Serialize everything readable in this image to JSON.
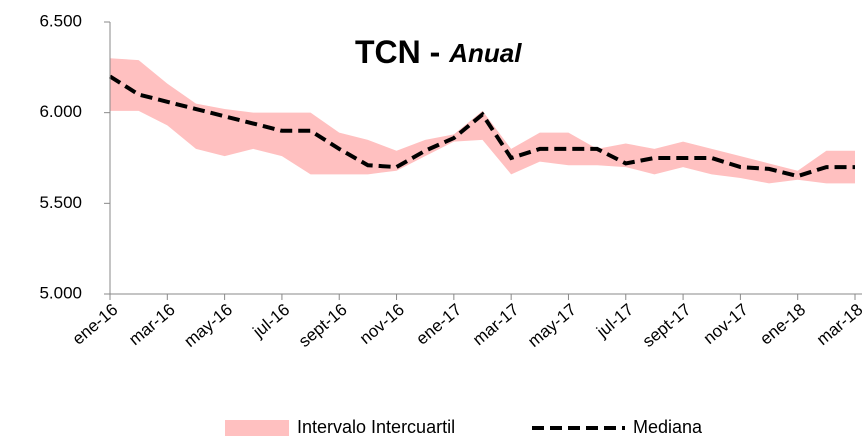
{
  "chart_data": {
    "type": "line",
    "title": "TCN -",
    "subtitle": "Anual",
    "categories": [
      "ene-16",
      null,
      "mar-16",
      null,
      "may-16",
      null,
      "jul-16",
      null,
      "sept-16",
      null,
      "nov-16",
      null,
      "ene-17",
      null,
      "mar-17",
      null,
      "may-17",
      null,
      "jul-17",
      null,
      "sept-17",
      null,
      "nov-17",
      null,
      "ene-18",
      null,
      "mar-18"
    ],
    "series": [
      {
        "name": "Intervalo Intercuartil",
        "color": "#ffc0c0",
        "upper": [
          6300,
          6290,
          6160,
          6050,
          6020,
          6000,
          6000,
          6000,
          5890,
          5850,
          5790,
          5850,
          5880,
          6010,
          5800,
          5890,
          5890,
          5800,
          5830,
          5800,
          5840,
          5800,
          5760,
          5720,
          5680,
          5790,
          5790
        ],
        "lower": [
          6010,
          6010,
          5930,
          5800,
          5760,
          5800,
          5760,
          5660,
          5660,
          5660,
          5680,
          5760,
          5840,
          5850,
          5660,
          5730,
          5710,
          5710,
          5700,
          5660,
          5700,
          5660,
          5640,
          5610,
          5630,
          5610,
          5610
        ]
      },
      {
        "name": "Mediana",
        "color": "#000000",
        "values": [
          6200,
          6100,
          6060,
          6020,
          5980,
          5940,
          5900,
          5900,
          5800,
          5710,
          5700,
          5790,
          5860,
          5990,
          5750,
          5800,
          5800,
          5800,
          5720,
          5750,
          5750,
          5750,
          5700,
          5690,
          5650,
          5700,
          5700
        ]
      }
    ],
    "ylim": [
      5000,
      6500
    ],
    "yticks": [
      {
        "value": 5000,
        "label": "5.000"
      },
      {
        "value": 5500,
        "label": "5.500"
      },
      {
        "value": 6000,
        "label": "6.000"
      },
      {
        "value": 6500,
        "label": "6.500"
      }
    ],
    "grid": false,
    "legend": "bottom"
  }
}
